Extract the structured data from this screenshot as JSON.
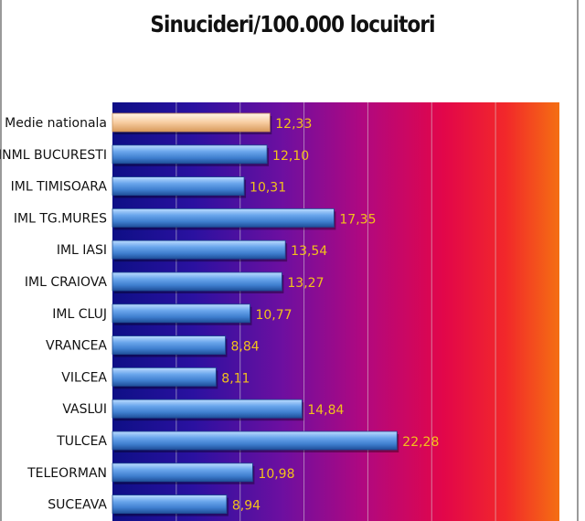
{
  "chart_data": {
    "type": "bar",
    "orientation": "horizontal",
    "title": "Sinucideri/100.000 locuitori",
    "categories": [
      "Medie nationala",
      "INML BUCURESTI",
      "IML TIMISOARA",
      "IML TG.MURES",
      "IML IASI",
      "IML CRAIOVA",
      "IML CLUJ",
      "VRANCEA",
      "VILCEA",
      "VASLUI",
      "TULCEA",
      "TELEORMAN",
      "SUCEAVA"
    ],
    "values": [
      12.33,
      12.1,
      10.31,
      17.35,
      13.54,
      13.27,
      10.77,
      8.84,
      8.11,
      14.84,
      22.28,
      10.98,
      8.94
    ],
    "value_labels": [
      "12,33",
      "12,10",
      "10,31",
      "17,35",
      "13,54",
      "13,27",
      "10,77",
      "8,84",
      "8,11",
      "14,84",
      "22,28",
      "10,98",
      "8,94"
    ],
    "xlim": [
      0,
      35
    ],
    "grid": true,
    "colors": {
      "bar": "#4a8fd8",
      "highlight_bar": "#f7c99a",
      "value_label": "#f2c21b",
      "gridline": "#d8d8d8"
    }
  }
}
